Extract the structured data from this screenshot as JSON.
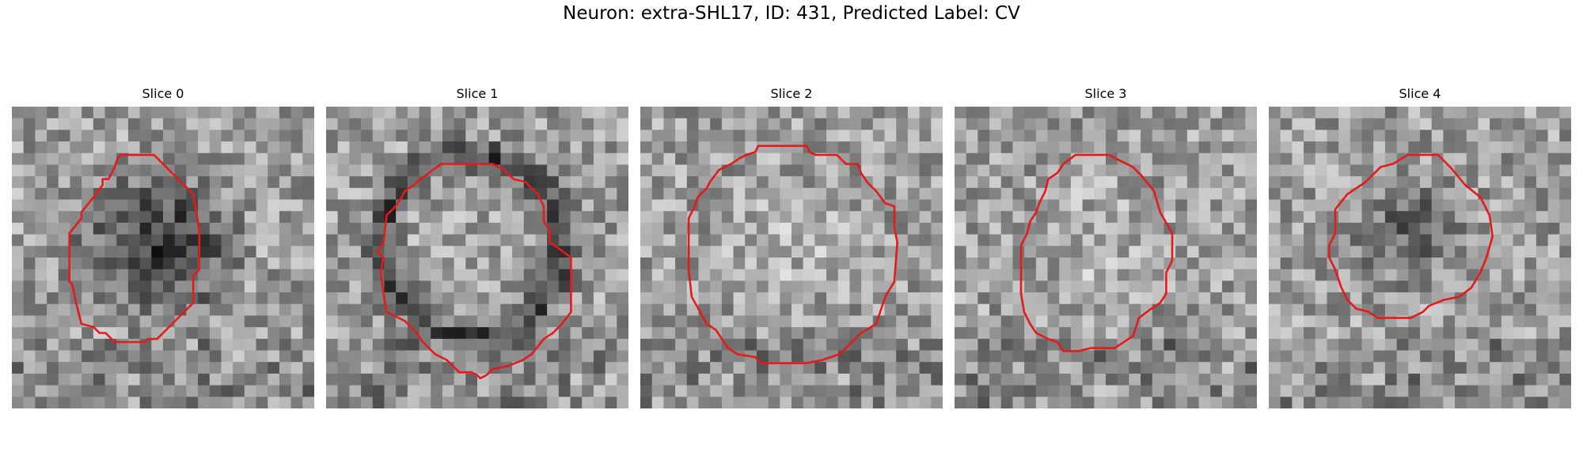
{
  "figure": {
    "title": "Neuron: extra-SHL17, ID: 431, Predicted Label: CV",
    "contour_color": "#e41a1c"
  },
  "panels": [
    {
      "title": "Slice 0",
      "center": "dark",
      "seed": 11,
      "darkness": 0.85,
      "roi": [
        [
          0.36,
          0.16
        ],
        [
          0.47,
          0.16
        ],
        [
          0.56,
          0.25
        ],
        [
          0.6,
          0.29
        ],
        [
          0.62,
          0.41
        ],
        [
          0.62,
          0.54
        ],
        [
          0.6,
          0.56
        ],
        [
          0.6,
          0.65
        ],
        [
          0.53,
          0.72
        ],
        [
          0.48,
          0.77
        ],
        [
          0.45,
          0.77
        ],
        [
          0.44,
          0.78
        ],
        [
          0.34,
          0.78
        ],
        [
          0.31,
          0.75
        ],
        [
          0.29,
          0.75
        ],
        [
          0.27,
          0.73
        ],
        [
          0.23,
          0.72
        ],
        [
          0.22,
          0.68
        ],
        [
          0.21,
          0.64
        ],
        [
          0.2,
          0.59
        ],
        [
          0.19,
          0.58
        ],
        [
          0.19,
          0.42
        ],
        [
          0.23,
          0.37
        ],
        [
          0.23,
          0.35
        ],
        [
          0.27,
          0.3
        ],
        [
          0.3,
          0.26
        ],
        [
          0.3,
          0.24
        ],
        [
          0.32,
          0.24
        ],
        [
          0.34,
          0.2
        ],
        [
          0.35,
          0.17
        ]
      ]
    },
    {
      "title": "Slice 1",
      "center": "ring",
      "seed": 23,
      "darkness": 0.7,
      "roi": [
        [
          0.38,
          0.19
        ],
        [
          0.55,
          0.19
        ],
        [
          0.59,
          0.21
        ],
        [
          0.62,
          0.24
        ],
        [
          0.66,
          0.25
        ],
        [
          0.7,
          0.29
        ],
        [
          0.72,
          0.33
        ],
        [
          0.72,
          0.38
        ],
        [
          0.74,
          0.41
        ],
        [
          0.74,
          0.45
        ],
        [
          0.77,
          0.47
        ],
        [
          0.81,
          0.5
        ],
        [
          0.81,
          0.68
        ],
        [
          0.78,
          0.72
        ],
        [
          0.75,
          0.75
        ],
        [
          0.72,
          0.77
        ],
        [
          0.68,
          0.82
        ],
        [
          0.65,
          0.84
        ],
        [
          0.6,
          0.86
        ],
        [
          0.55,
          0.87
        ],
        [
          0.53,
          0.89
        ],
        [
          0.51,
          0.9
        ],
        [
          0.5,
          0.89
        ],
        [
          0.48,
          0.88
        ],
        [
          0.44,
          0.88
        ],
        [
          0.4,
          0.84
        ],
        [
          0.36,
          0.82
        ],
        [
          0.32,
          0.78
        ],
        [
          0.3,
          0.75
        ],
        [
          0.26,
          0.71
        ],
        [
          0.2,
          0.68
        ],
        [
          0.19,
          0.62
        ],
        [
          0.18,
          0.55
        ],
        [
          0.19,
          0.5
        ],
        [
          0.17,
          0.48
        ],
        [
          0.19,
          0.45
        ],
        [
          0.2,
          0.36
        ],
        [
          0.23,
          0.33
        ],
        [
          0.25,
          0.3
        ],
        [
          0.26,
          0.28
        ],
        [
          0.29,
          0.26
        ],
        [
          0.3,
          0.25
        ],
        [
          0.34,
          0.22
        ]
      ]
    },
    {
      "title": "Slice 2",
      "center": "light",
      "seed": 37,
      "darkness": 0.55,
      "roi": [
        [
          0.39,
          0.13
        ],
        [
          0.55,
          0.13
        ],
        [
          0.56,
          0.15
        ],
        [
          0.58,
          0.16
        ],
        [
          0.65,
          0.16
        ],
        [
          0.68,
          0.19
        ],
        [
          0.72,
          0.19
        ],
        [
          0.73,
          0.22
        ],
        [
          0.75,
          0.25
        ],
        [
          0.78,
          0.28
        ],
        [
          0.81,
          0.32
        ],
        [
          0.84,
          0.33
        ],
        [
          0.84,
          0.4
        ],
        [
          0.85,
          0.45
        ],
        [
          0.84,
          0.58
        ],
        [
          0.81,
          0.63
        ],
        [
          0.8,
          0.66
        ],
        [
          0.78,
          0.72
        ],
        [
          0.73,
          0.75
        ],
        [
          0.71,
          0.77
        ],
        [
          0.66,
          0.82
        ],
        [
          0.6,
          0.84
        ],
        [
          0.55,
          0.85
        ],
        [
          0.4,
          0.85
        ],
        [
          0.38,
          0.83
        ],
        [
          0.32,
          0.82
        ],
        [
          0.29,
          0.8
        ],
        [
          0.25,
          0.74
        ],
        [
          0.22,
          0.72
        ],
        [
          0.17,
          0.63
        ],
        [
          0.16,
          0.54
        ],
        [
          0.16,
          0.37
        ],
        [
          0.18,
          0.33
        ],
        [
          0.19,
          0.3
        ],
        [
          0.22,
          0.27
        ],
        [
          0.23,
          0.25
        ],
        [
          0.26,
          0.21
        ],
        [
          0.3,
          0.19
        ],
        [
          0.33,
          0.17
        ],
        [
          0.35,
          0.16
        ],
        [
          0.38,
          0.15
        ]
      ]
    },
    {
      "title": "Slice 3",
      "center": "light",
      "seed": 53,
      "darkness": 0.45,
      "roi": [
        [
          0.4,
          0.16
        ],
        [
          0.51,
          0.16
        ],
        [
          0.55,
          0.18
        ],
        [
          0.59,
          0.2
        ],
        [
          0.62,
          0.23
        ],
        [
          0.66,
          0.28
        ],
        [
          0.68,
          0.35
        ],
        [
          0.72,
          0.42
        ],
        [
          0.72,
          0.51
        ],
        [
          0.7,
          0.55
        ],
        [
          0.7,
          0.62
        ],
        [
          0.68,
          0.65
        ],
        [
          0.65,
          0.67
        ],
        [
          0.61,
          0.7
        ],
        [
          0.59,
          0.76
        ],
        [
          0.53,
          0.8
        ],
        [
          0.45,
          0.8
        ],
        [
          0.41,
          0.81
        ],
        [
          0.36,
          0.81
        ],
        [
          0.34,
          0.78
        ],
        [
          0.31,
          0.77
        ],
        [
          0.27,
          0.75
        ],
        [
          0.25,
          0.72
        ],
        [
          0.23,
          0.68
        ],
        [
          0.22,
          0.62
        ],
        [
          0.22,
          0.46
        ],
        [
          0.24,
          0.42
        ],
        [
          0.25,
          0.38
        ],
        [
          0.27,
          0.35
        ],
        [
          0.28,
          0.32
        ],
        [
          0.3,
          0.28
        ],
        [
          0.31,
          0.24
        ],
        [
          0.34,
          0.22
        ],
        [
          0.36,
          0.19
        ]
      ]
    },
    {
      "title": "Slice 4",
      "center": "dark-small",
      "seed": 71,
      "darkness": 0.65,
      "roi": [
        [
          0.46,
          0.16
        ],
        [
          0.56,
          0.16
        ],
        [
          0.6,
          0.2
        ],
        [
          0.65,
          0.26
        ],
        [
          0.7,
          0.3
        ],
        [
          0.73,
          0.36
        ],
        [
          0.74,
          0.43
        ],
        [
          0.72,
          0.5
        ],
        [
          0.7,
          0.55
        ],
        [
          0.67,
          0.6
        ],
        [
          0.63,
          0.63
        ],
        [
          0.58,
          0.64
        ],
        [
          0.53,
          0.66
        ],
        [
          0.51,
          0.68
        ],
        [
          0.47,
          0.7
        ],
        [
          0.36,
          0.7
        ],
        [
          0.33,
          0.68
        ],
        [
          0.29,
          0.67
        ],
        [
          0.26,
          0.64
        ],
        [
          0.24,
          0.6
        ],
        [
          0.22,
          0.54
        ],
        [
          0.2,
          0.5
        ],
        [
          0.2,
          0.46
        ],
        [
          0.22,
          0.42
        ],
        [
          0.22,
          0.34
        ],
        [
          0.26,
          0.29
        ],
        [
          0.32,
          0.25
        ],
        [
          0.37,
          0.2
        ],
        [
          0.41,
          0.19
        ]
      ]
    }
  ]
}
